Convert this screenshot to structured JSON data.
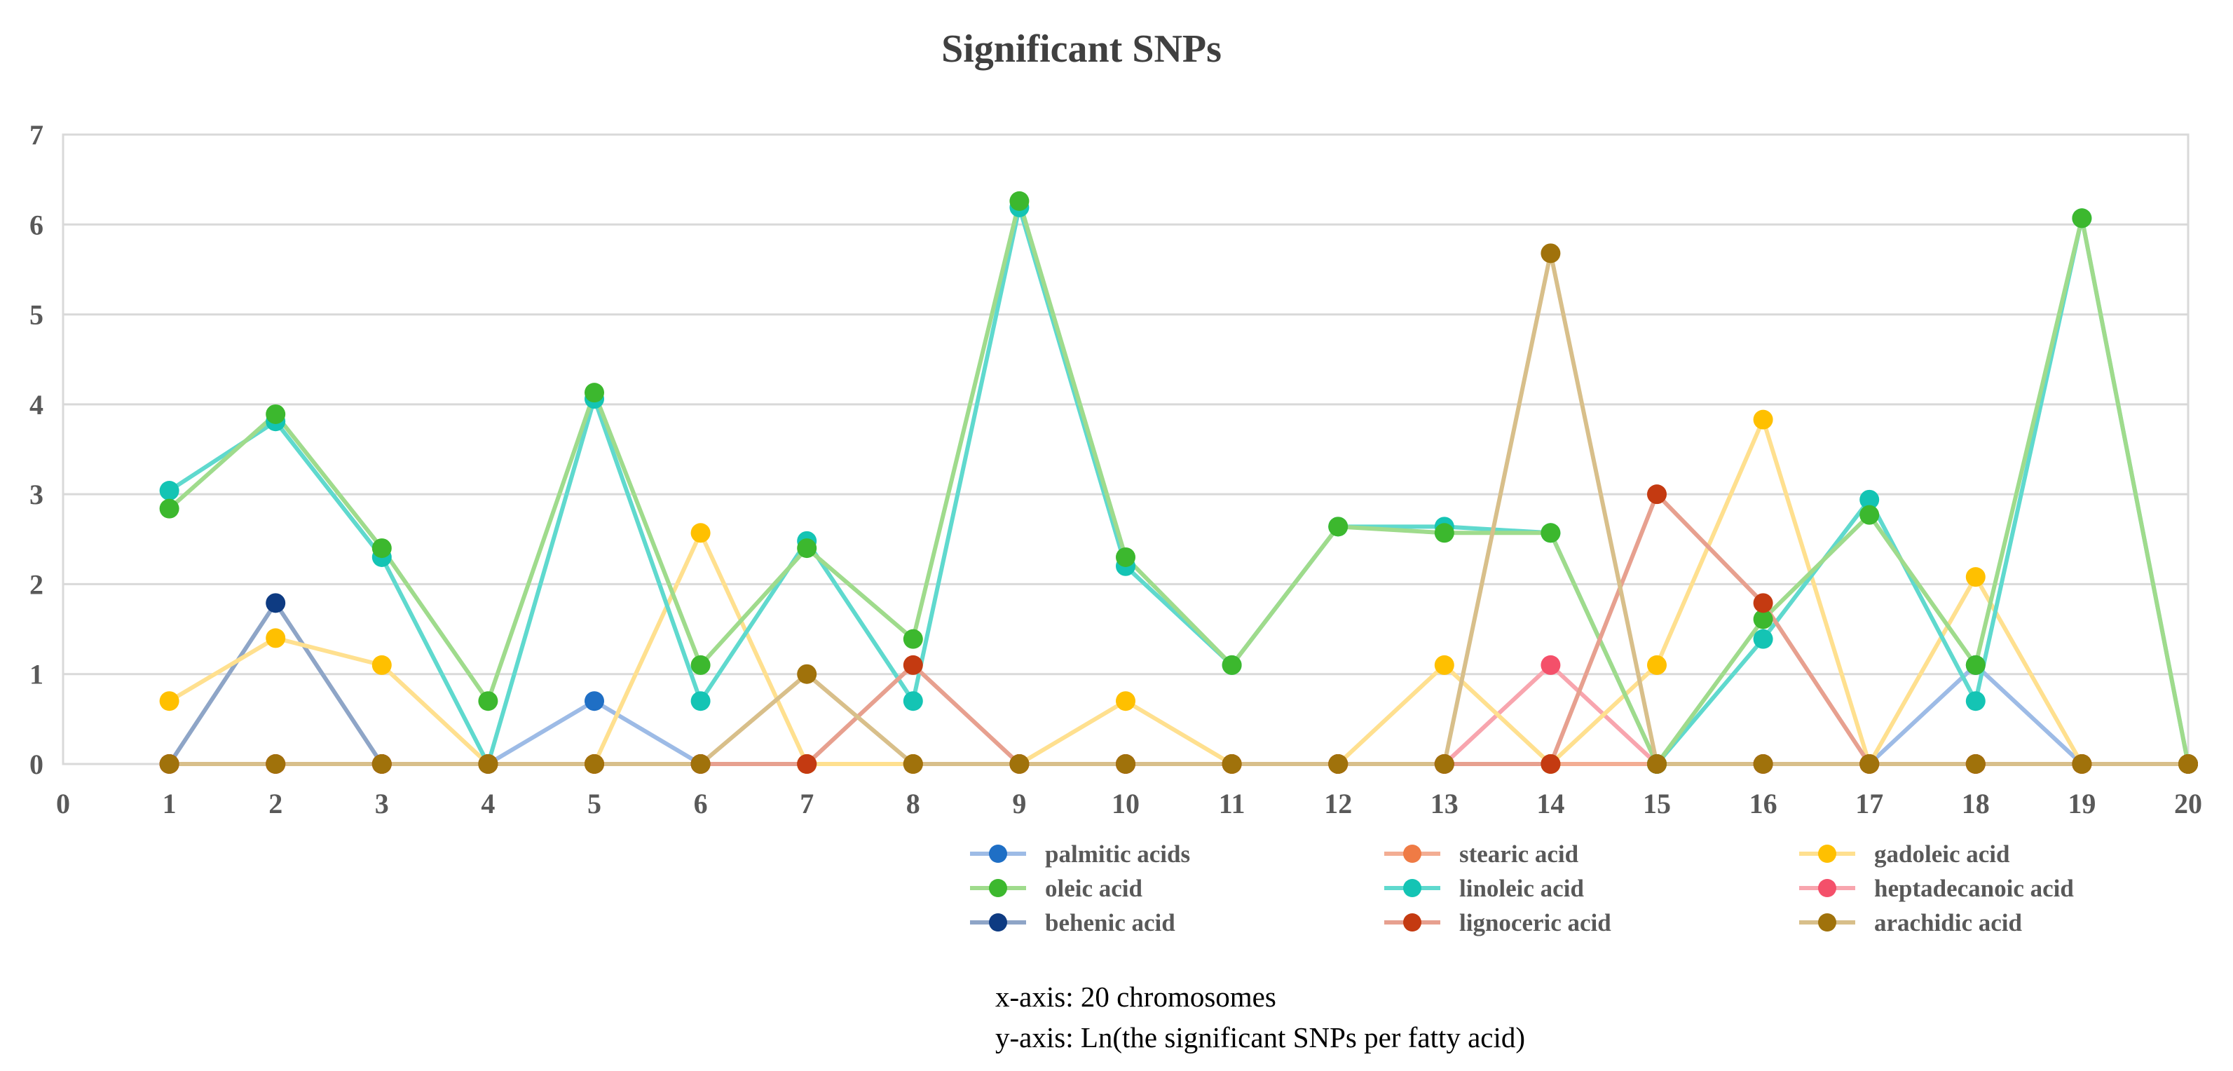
{
  "chart_data": {
    "type": "line",
    "title": "Significant SNPs",
    "x_ticks": [
      "0",
      "1",
      "2",
      "3",
      "4",
      "5",
      "6",
      "7",
      "8",
      "9",
      "10",
      "11",
      "12",
      "13",
      "14",
      "15",
      "16",
      "17",
      "18",
      "19",
      "20"
    ],
    "y_ticks": [
      "0",
      "1",
      "2",
      "3",
      "4",
      "5",
      "6",
      "7"
    ],
    "xlim": [
      0,
      20
    ],
    "ylim": [
      0,
      7
    ],
    "grid": "horizontal",
    "legend_position": "bottom-right",
    "x": [
      1,
      2,
      3,
      4,
      5,
      6,
      7,
      8,
      9,
      10,
      11,
      12,
      13,
      14,
      15,
      16,
      17,
      18,
      19,
      20
    ],
    "series": [
      {
        "name": "palmitic acids",
        "color": "#9dbbe6",
        "marker": "#1f6fc5",
        "values": [
          0,
          0,
          0,
          0,
          0.7,
          0,
          0,
          0,
          0,
          0,
          0,
          0,
          0,
          0,
          0,
          0,
          0,
          1.1,
          0,
          0
        ]
      },
      {
        "name": "stearic acid",
        "color": "#f3ad93",
        "marker": "#ef7b45",
        "values": [
          0,
          0,
          0,
          0,
          0,
          0,
          0,
          0,
          0,
          0,
          0,
          0,
          0,
          0,
          0,
          0,
          0,
          0,
          0,
          0
        ]
      },
      {
        "name": "gadoleic acid",
        "color": "#ffe08f",
        "marker": "#ffc000",
        "values": [
          0.7,
          1.4,
          1.1,
          0,
          0,
          2.57,
          0,
          0,
          0,
          0.7,
          0,
          0,
          1.1,
          0,
          1.1,
          3.83,
          0,
          2.08,
          0,
          0
        ]
      },
      {
        "name": "oleic acid",
        "color": "#9fdb8c",
        "marker": "#3cb82e",
        "values": [
          2.84,
          3.89,
          2.4,
          0.7,
          4.13,
          1.1,
          2.4,
          1.39,
          6.26,
          2.3,
          1.1,
          2.64,
          2.57,
          2.57,
          0,
          1.61,
          2.77,
          1.1,
          6.07,
          0
        ]
      },
      {
        "name": "linoleic acid",
        "color": "#5fd9ce",
        "marker": "#14c4b4",
        "values": [
          3.04,
          3.81,
          2.3,
          0,
          4.06,
          0.7,
          2.48,
          0.7,
          6.19,
          2.2,
          1.1,
          2.64,
          2.64,
          2.57,
          0,
          1.39,
          2.94,
          0.7,
          6.07,
          0
        ]
      },
      {
        "name": "heptadecanoic acid",
        "color": "#f8a5ae",
        "marker": "#f4506a",
        "values": [
          0,
          0,
          0,
          0,
          0,
          0,
          0,
          0,
          0,
          0,
          0,
          0,
          0,
          1.1,
          0,
          0,
          0,
          0,
          0,
          0
        ]
      },
      {
        "name": "behenic acid",
        "color": "#8ea5c7",
        "marker": "#0e3b82",
        "values": [
          0,
          1.79,
          0,
          0,
          0,
          0,
          0,
          0,
          0,
          0,
          0,
          0,
          0,
          0,
          0,
          0,
          0,
          0,
          0,
          0
        ]
      },
      {
        "name": "lignoceric acid",
        "color": "#e7a08f",
        "marker": "#c43a11",
        "values": [
          0,
          0,
          0,
          0,
          0,
          0,
          0,
          1.1,
          0,
          0,
          0,
          0,
          0,
          0,
          3.0,
          1.79,
          0,
          0,
          0,
          0
        ]
      },
      {
        "name": "arachidic acid",
        "color": "#d8bf8a",
        "marker": "#a0720b",
        "values": [
          0,
          0,
          0,
          0,
          0,
          0,
          1.0,
          0,
          0,
          0,
          0,
          0,
          0,
          5.68,
          0,
          0,
          0,
          0,
          0,
          0
        ]
      }
    ],
    "draw_order": [
      "palmitic acids",
      "behenic acid",
      "stearic acid",
      "heptadecanoic acid",
      "gadoleic acid",
      "linoleic acid",
      "oleic acid",
      "lignoceric acid",
      "arachidic acid"
    ],
    "annotations": [
      "x-axis: 20 chromosomes",
      "y-axis: Ln(the significant SNPs per fatty acid)"
    ]
  }
}
